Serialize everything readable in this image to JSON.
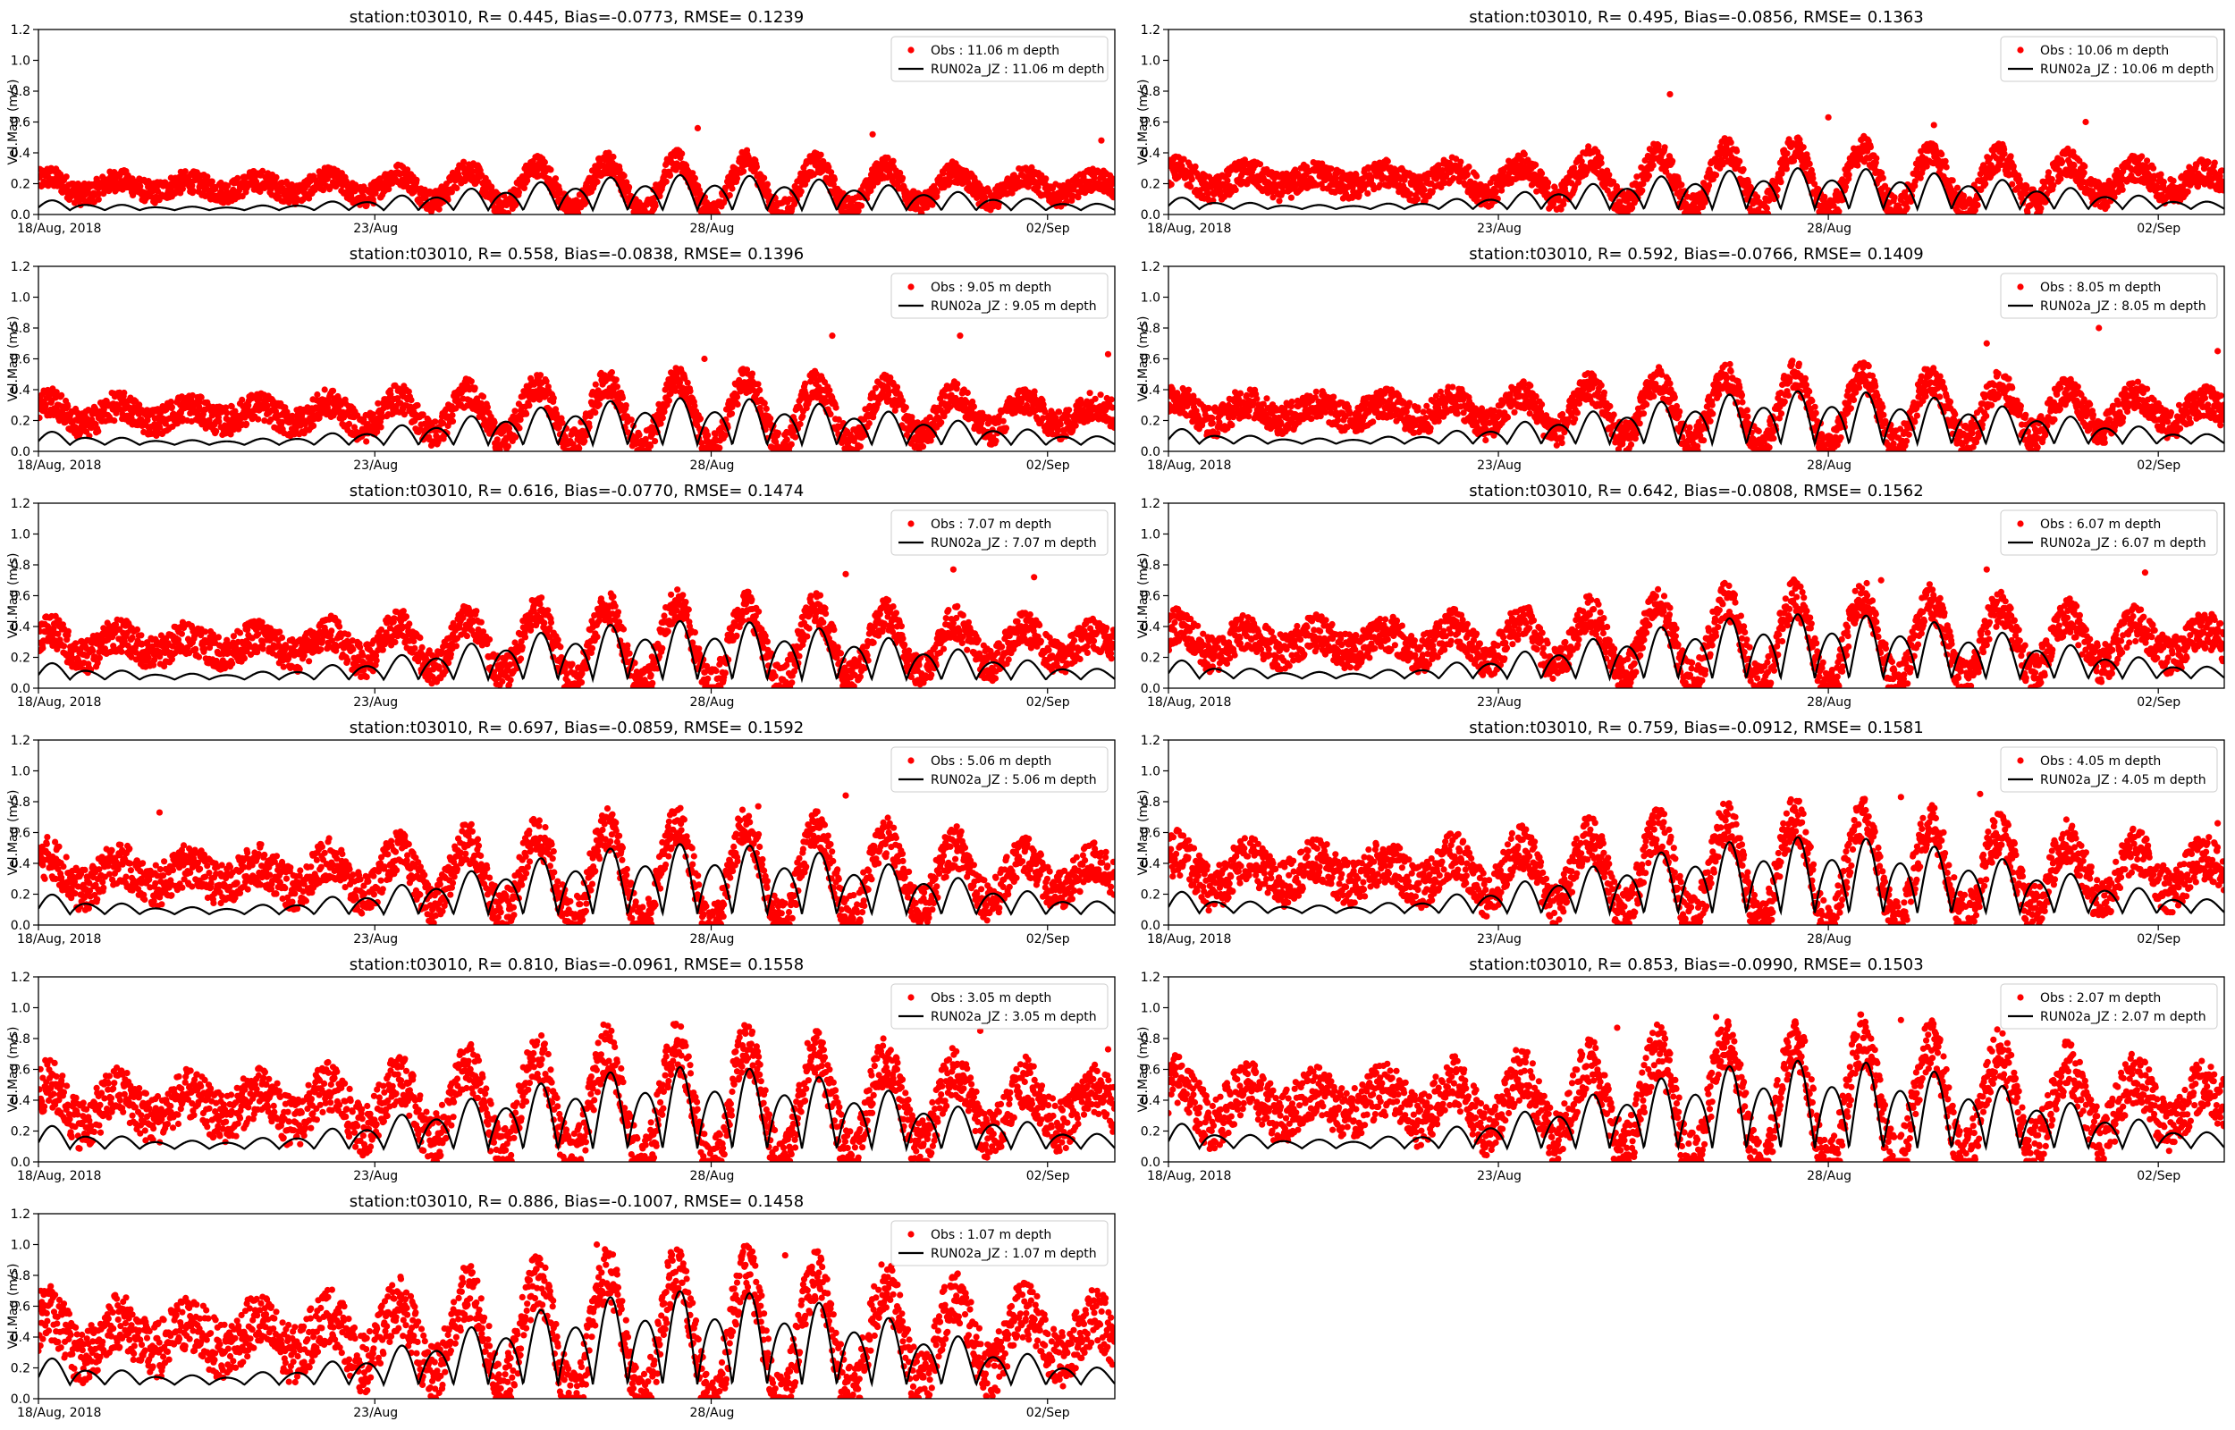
{
  "figure": {
    "yticks": [
      0.0,
      0.2,
      0.4,
      0.6,
      0.8,
      1.0,
      1.2
    ],
    "xticks": [
      "18/Aug, 2018",
      "23/Aug",
      "28/Aug",
      "02/Sep"
    ],
    "ylabel": "Vel.Mag (m/s)",
    "obs_color": "#ff0000",
    "model_color": "#000000"
  },
  "chart_data": [
    {
      "type": "scatter+line",
      "title": "station:t03010, R= 0.445, Bias=-0.0773, RMSE= 0.1239",
      "legend": [
        "Obs : 11.06 m depth",
        "RUN02a_JZ : 11.06 m depth"
      ],
      "legend_placement": "top-right",
      "ylim": [
        0,
        1.2
      ],
      "xlim_days": [
        "2018-08-18",
        "2018-09-03"
      ],
      "obs_level": 0.18,
      "obs_amp": 0.13,
      "model_level": 0.08,
      "model_amp": 0.12,
      "outliers": [
        [
          9.8,
          0.56
        ],
        [
          15.8,
          0.48
        ],
        [
          12.4,
          0.52
        ]
      ]
    },
    {
      "type": "scatter+line",
      "title": "station:t03010, R= 0.495, Bias=-0.0856, RMSE= 0.1363",
      "legend": [
        "Obs : 10.06 m depth",
        "RUN02a_JZ : 10.06 m depth"
      ],
      "legend_placement": "top-right",
      "ylim": [
        0,
        1.2
      ],
      "xlim_days": [
        "2018-08-18",
        "2018-09-03"
      ],
      "obs_level": 0.22,
      "obs_amp": 0.16,
      "model_level": 0.1,
      "model_amp": 0.14,
      "outliers": [
        [
          7.6,
          0.78
        ],
        [
          10.0,
          0.63
        ],
        [
          11.6,
          0.58
        ],
        [
          13.9,
          0.6
        ]
      ]
    },
    {
      "type": "scatter+line",
      "title": "station:t03010, R= 0.558, Bias=-0.0838, RMSE= 0.1396",
      "legend": [
        "Obs : 9.05 m depth",
        "RUN02a_JZ : 9.05 m depth"
      ],
      "legend_placement": "top-right",
      "ylim": [
        0,
        1.2
      ],
      "xlim_days": [
        "2018-08-18",
        "2018-09-03"
      ],
      "obs_level": 0.24,
      "obs_amp": 0.17,
      "model_level": 0.12,
      "model_amp": 0.16,
      "outliers": [
        [
          11.8,
          0.75
        ],
        [
          13.7,
          0.75
        ],
        [
          15.9,
          0.63
        ],
        [
          9.9,
          0.6
        ]
      ]
    },
    {
      "type": "scatter+line",
      "title": "station:t03010, R= 0.592, Bias=-0.0766, RMSE= 0.1409",
      "legend": [
        "Obs : 8.05 m depth",
        "RUN02a_JZ : 8.05 m depth"
      ],
      "legend_placement": "top-right",
      "ylim": [
        0,
        1.2
      ],
      "xlim_days": [
        "2018-08-18",
        "2018-09-03"
      ],
      "obs_level": 0.26,
      "obs_amp": 0.18,
      "model_level": 0.14,
      "model_amp": 0.18,
      "outliers": [
        [
          14.1,
          0.8
        ],
        [
          12.4,
          0.7
        ],
        [
          15.9,
          0.65
        ]
      ]
    },
    {
      "type": "scatter+line",
      "title": "station:t03010, R= 0.616, Bias=-0.0770, RMSE= 0.1474",
      "legend": [
        "Obs : 7.07 m depth",
        "RUN02a_JZ : 7.07 m depth"
      ],
      "legend_placement": "top-right",
      "ylim": [
        0,
        1.2
      ],
      "xlim_days": [
        "2018-08-18",
        "2018-09-03"
      ],
      "obs_level": 0.28,
      "obs_amp": 0.2,
      "model_level": 0.16,
      "model_amp": 0.2,
      "outliers": [
        [
          13.6,
          0.77
        ],
        [
          14.8,
          0.72
        ],
        [
          12.0,
          0.74
        ]
      ]
    },
    {
      "type": "scatter+line",
      "title": "station:t03010, R= 0.642, Bias=-0.0808, RMSE= 0.1562",
      "legend": [
        "Obs : 6.07 m depth",
        "RUN02a_JZ : 6.07 m depth"
      ],
      "legend_placement": "top-right",
      "ylim": [
        0,
        1.2
      ],
      "xlim_days": [
        "2018-08-18",
        "2018-09-03"
      ],
      "obs_level": 0.3,
      "obs_amp": 0.22,
      "model_level": 0.18,
      "model_amp": 0.22,
      "outliers": [
        [
          12.4,
          0.77
        ],
        [
          14.8,
          0.75
        ],
        [
          10.8,
          0.7
        ]
      ]
    },
    {
      "type": "scatter+line",
      "title": "station:t03010, R= 0.697, Bias=-0.0859, RMSE= 0.1592",
      "legend": [
        "Obs : 5.06 m depth",
        "RUN02a_JZ : 5.06 m depth"
      ],
      "legend_placement": "top-right",
      "ylim": [
        0,
        1.2
      ],
      "xlim_days": [
        "2018-08-18",
        "2018-09-03"
      ],
      "obs_level": 0.32,
      "obs_amp": 0.25,
      "model_level": 0.2,
      "model_amp": 0.24,
      "outliers": [
        [
          1.8,
          0.73
        ],
        [
          12.0,
          0.84
        ],
        [
          10.7,
          0.77
        ]
      ]
    },
    {
      "type": "scatter+line",
      "title": "station:t03010, R= 0.759, Bias=-0.0912, RMSE= 0.1581",
      "legend": [
        "Obs : 4.05 m depth",
        "RUN02a_JZ : 4.05 m depth"
      ],
      "legend_placement": "top-right",
      "ylim": [
        0,
        1.2
      ],
      "xlim_days": [
        "2018-08-18",
        "2018-09-03"
      ],
      "obs_level": 0.34,
      "obs_amp": 0.27,
      "model_level": 0.22,
      "model_amp": 0.26,
      "outliers": [
        [
          11.1,
          0.83
        ],
        [
          12.3,
          0.85
        ],
        [
          15.9,
          0.66
        ]
      ]
    },
    {
      "type": "scatter+line",
      "title": "station:t03010, R= 0.810, Bias=-0.0961, RMSE= 0.1558",
      "legend": [
        "Obs : 3.05 m depth",
        "RUN02a_JZ : 3.05 m depth"
      ],
      "legend_placement": "top-right",
      "ylim": [
        0,
        1.2
      ],
      "xlim_days": [
        "2018-08-18",
        "2018-09-03"
      ],
      "obs_level": 0.36,
      "obs_amp": 0.3,
      "model_level": 0.24,
      "model_amp": 0.28,
      "outliers": [
        [
          8.4,
          0.89
        ],
        [
          14.0,
          0.85
        ],
        [
          15.9,
          0.73
        ]
      ]
    },
    {
      "type": "scatter+line",
      "title": "station:t03010, R= 0.853, Bias=-0.0990, RMSE= 0.1503",
      "legend": [
        "Obs : 2.07 m depth",
        "RUN02a_JZ : 2.07 m depth"
      ],
      "legend_placement": "top-right",
      "ylim": [
        0,
        1.2
      ],
      "xlim_days": [
        "2018-08-18",
        "2018-09-03"
      ],
      "obs_level": 0.38,
      "obs_amp": 0.32,
      "model_level": 0.25,
      "model_amp": 0.3,
      "outliers": [
        [
          8.3,
          0.94
        ],
        [
          11.1,
          0.92
        ],
        [
          6.8,
          0.87
        ]
      ]
    },
    {
      "type": "scatter+line",
      "title": "station:t03010, R= 0.886, Bias=-0.1007, RMSE= 0.1458",
      "legend": [
        "Obs : 1.07 m depth",
        "RUN02a_JZ : 1.07 m depth"
      ],
      "legend_placement": "top-right",
      "ylim": [
        0,
        1.2
      ],
      "xlim_days": [
        "2018-08-18",
        "2018-09-03"
      ],
      "obs_level": 0.4,
      "obs_amp": 0.34,
      "model_level": 0.26,
      "model_amp": 0.32,
      "outliers": [
        [
          8.3,
          1.0
        ],
        [
          9.4,
          0.95
        ],
        [
          11.1,
          0.93
        ]
      ]
    }
  ]
}
